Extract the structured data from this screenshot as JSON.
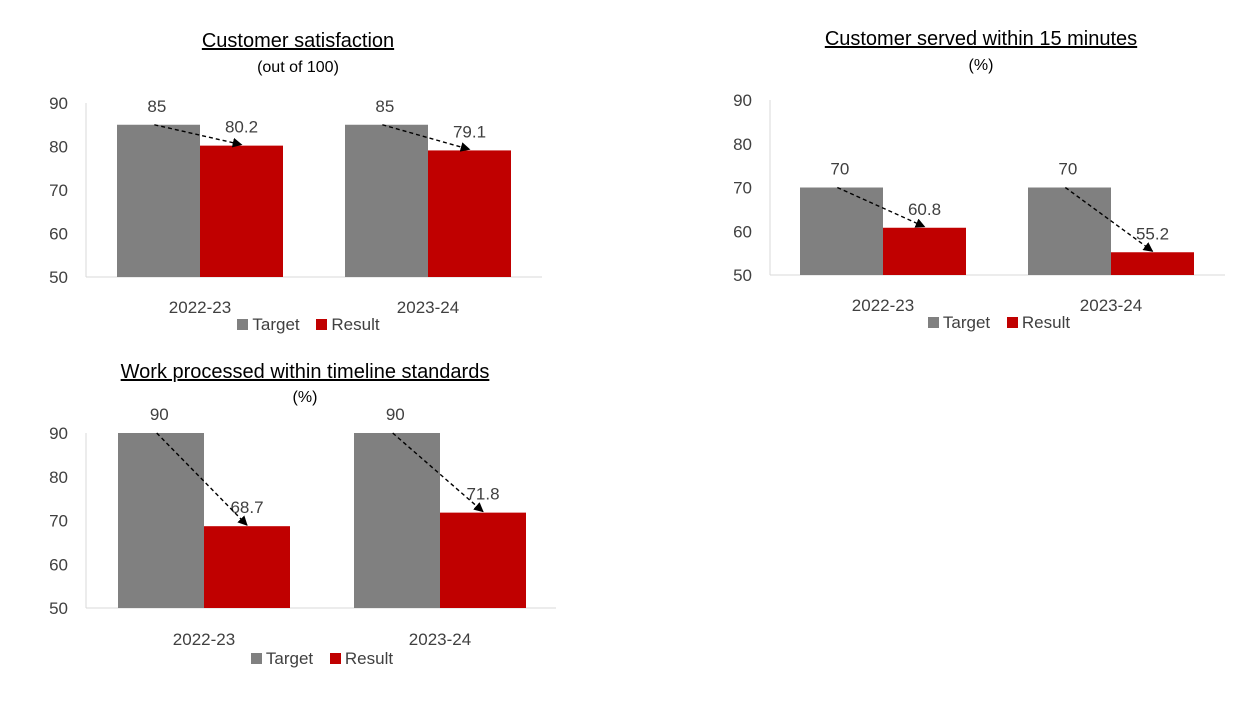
{
  "colors": {
    "target": "#808080",
    "result": "#c00000",
    "axis": "#d9d9d9"
  },
  "chart_data": [
    {
      "type": "bar",
      "title": "Customer satisfaction",
      "subtitle": "(out of 100)",
      "categories": [
        "2022-23",
        "2023-24"
      ],
      "series": [
        {
          "name": "Target",
          "values": [
            85,
            85
          ]
        },
        {
          "name": "Result",
          "values": [
            80.2,
            79.1
          ]
        }
      ],
      "yticks": [
        50,
        60,
        70,
        80,
        90
      ],
      "ylim": [
        50,
        90
      ],
      "legend": "bottom",
      "grid": false
    },
    {
      "type": "bar",
      "title": "Customer served within 15 minutes",
      "subtitle": "(%)",
      "categories": [
        "2022-23",
        "2023-24"
      ],
      "series": [
        {
          "name": "Target",
          "values": [
            70,
            70
          ]
        },
        {
          "name": "Result",
          "values": [
            60.8,
            55.2
          ]
        }
      ],
      "yticks": [
        50,
        60,
        70,
        80,
        90
      ],
      "ylim": [
        50,
        90
      ],
      "legend": "bottom",
      "grid": false
    },
    {
      "type": "bar",
      "title": "Work processed within timeline standards",
      "subtitle": "(%)",
      "categories": [
        "2022-23",
        "2023-24"
      ],
      "series": [
        {
          "name": "Target",
          "values": [
            90,
            90
          ]
        },
        {
          "name": "Result",
          "values": [
            68.7,
            71.8
          ]
        }
      ],
      "yticks": [
        50,
        60,
        70,
        80,
        90
      ],
      "ylim": [
        50,
        90
      ],
      "legend": "bottom",
      "grid": false
    }
  ]
}
